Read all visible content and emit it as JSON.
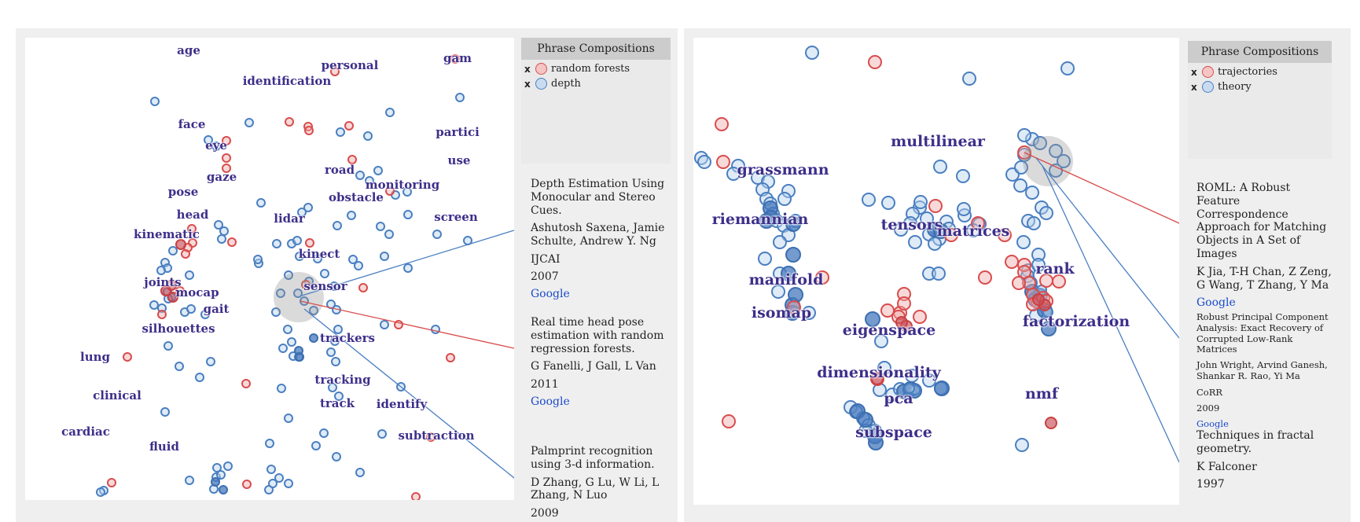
{
  "left": {
    "legend": {
      "title": "Phrase Compositions",
      "items": [
        {
          "remove": "x",
          "label": "random forests",
          "color": "#d94c4c"
        },
        {
          "remove": "x",
          "label": "depth",
          "color": "#4a7fc1"
        }
      ]
    },
    "terms": [
      {
        "label": "age"
      },
      {
        "label": "personal"
      },
      {
        "label": "gam"
      },
      {
        "label": "identification"
      },
      {
        "label": "face"
      },
      {
        "label": "partici"
      },
      {
        "label": "eye"
      },
      {
        "label": "use"
      },
      {
        "label": "gaze"
      },
      {
        "label": "road"
      },
      {
        "label": "monitoring"
      },
      {
        "label": "pose"
      },
      {
        "label": "obstacle"
      },
      {
        "label": "head"
      },
      {
        "label": "lidar"
      },
      {
        "label": "screen"
      },
      {
        "label": "kinematic"
      },
      {
        "label": "kinect"
      },
      {
        "label": "joints"
      },
      {
        "label": "sensor"
      },
      {
        "label": "mocap"
      },
      {
        "label": "gait"
      },
      {
        "label": "silhouettes"
      },
      {
        "label": "trackers"
      },
      {
        "label": "lung"
      },
      {
        "label": "tracking"
      },
      {
        "label": "clinical"
      },
      {
        "label": "track"
      },
      {
        "label": "identify"
      },
      {
        "label": "cardiac"
      },
      {
        "label": "subtraction"
      },
      {
        "label": "fluid"
      }
    ],
    "papers": [
      {
        "title": "Depth Estimation Using Monocular and Stereo Cues.",
        "authors": "Ashutosh Saxena, Jamie Schulte, Andrew Y. Ng",
        "venue": "IJCAI",
        "year": "2007",
        "link": "Google"
      },
      {
        "title": "Real time head pose estimation with random regression forests.",
        "authors": "G Fanelli, J Gall, L Van",
        "venue": "",
        "year": "2011",
        "link": "Google"
      },
      {
        "title": "Palmprint recognition using 3-d information.",
        "authors": "D Zhang, G Lu, W Li, L Zhang, N Luo",
        "venue": "",
        "year": "2009",
        "link": ""
      }
    ]
  },
  "right": {
    "legend": {
      "title": "Phrase Compositions",
      "items": [
        {
          "remove": "x",
          "label": "trajectories",
          "color": "#d94c4c"
        },
        {
          "remove": "x",
          "label": "theory",
          "color": "#4a7fc1"
        }
      ]
    },
    "terms": [
      {
        "label": "multilinear"
      },
      {
        "label": "grassmann"
      },
      {
        "label": "riemannian"
      },
      {
        "label": "tensors"
      },
      {
        "label": "matrices"
      },
      {
        "label": "rank"
      },
      {
        "label": "manifold"
      },
      {
        "label": "isomap"
      },
      {
        "label": "factorization"
      },
      {
        "label": "eigenspace"
      },
      {
        "label": "dimensionality"
      },
      {
        "label": "pca"
      },
      {
        "label": "nmf"
      },
      {
        "label": "subspace"
      }
    ],
    "papers": [
      {
        "title": "ROML: A Robust Feature Correspondence Approach for Matching Objects in A Set of Images",
        "authors": "K Jia, T-H Chan, Z Zeng, G Wang, T Zhang, Y Ma",
        "venue": "",
        "year": "",
        "link": "Google"
      },
      {
        "title": "Robust Principal Component Analysis: Exact Recovery of Corrupted Low-Rank Matrices",
        "authors": "John Wright, Arvind Ganesh, Shankar R. Rao, Yi Ma",
        "venue": "CoRR",
        "year": "2009",
        "link": "Google"
      },
      {
        "title": "Techniques in fractal geometry.",
        "authors": "K Falconer",
        "venue": "",
        "year": "1997",
        "link": ""
      }
    ]
  }
}
